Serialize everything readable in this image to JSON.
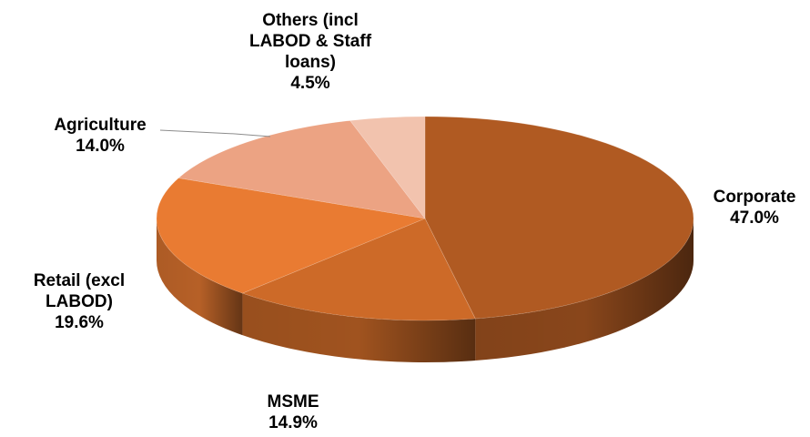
{
  "chart_data": {
    "type": "pie",
    "title": "",
    "slices": [
      {
        "label_lines": [
          "Corporate"
        ],
        "value": 47.0,
        "value_label": "47.0%",
        "color": "#b05a22"
      },
      {
        "label_lines": [
          "MSME"
        ],
        "value": 14.9,
        "value_label": "14.9%",
        "color": "#cd6a28"
      },
      {
        "label_lines": [
          "Retail (excl",
          "LABOD)"
        ],
        "value": 19.6,
        "value_label": "19.6%",
        "color": "#e97b32"
      },
      {
        "label_lines": [
          "Agriculture"
        ],
        "value": 14.0,
        "value_label": "14.0%",
        "color": "#eca383"
      },
      {
        "label_lines": [
          "Others (incl",
          "LABOD & Staff",
          "loans)"
        ],
        "value": 4.5,
        "value_label": "4.5%",
        "color": "#f2c3ae"
      }
    ]
  }
}
